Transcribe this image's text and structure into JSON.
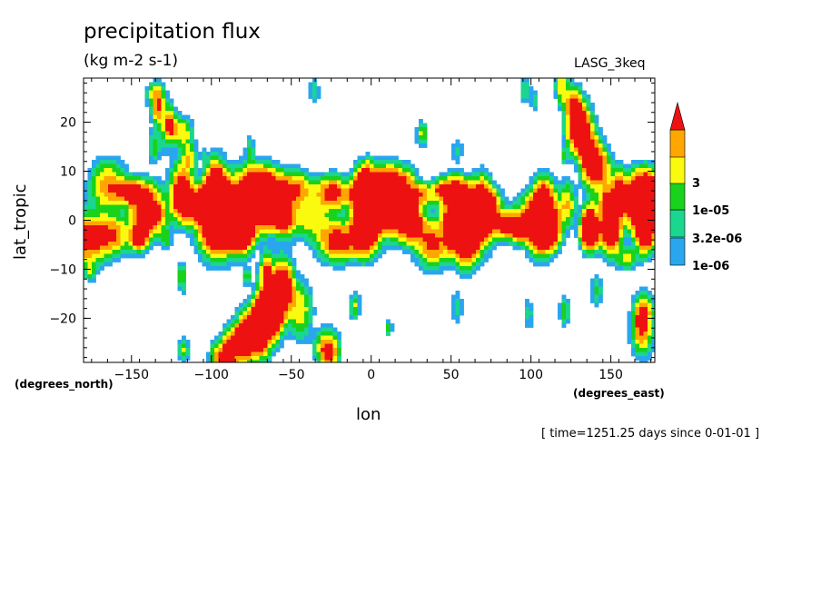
{
  "title": "precipitation flux",
  "units": "(kg m-2 s-1)",
  "dataset": "LASG_3keq",
  "footer": "[ time=1251.25 days since 0-01-01 ]",
  "chart_data": {
    "type": "heatmap",
    "title": "precipitation flux",
    "subtitle": "(kg m-2 s-1)",
    "xlabel": "lon",
    "ylabel": "lat_tropic",
    "x_units": "(degrees_east)",
    "y_units": "(degrees_north)",
    "xlim": [
      -180,
      177.5
    ],
    "ylim": [
      -29,
      29
    ],
    "xticks": [
      -150,
      -100,
      -50,
      0,
      50,
      100,
      150
    ],
    "yticks": [
      -20,
      -10,
      0,
      10,
      20
    ],
    "colorbar": {
      "levels": [
        "1e-06",
        "3.2e-06",
        "1e-05",
        "3"
      ],
      "colors": [
        "#ffffff",
        "#2aa6ee",
        "#1bd68e",
        "#19d21b",
        "#fafa0f",
        "#ffa600",
        "#ee1111"
      ],
      "extend": "max"
    },
    "zones": [
      {
        "feature": "equatorial rain band",
        "lat_range": [
          -6,
          9
        ],
        "lon_range": [
          -180,
          177.5
        ],
        "peak_class": 6
      },
      {
        "feature": "north-west tilted band",
        "from": [
          -145,
          28
        ],
        "to": [
          -20,
          -29
        ]
      },
      {
        "feature": "north-east tilted band",
        "from": [
          120,
          28
        ],
        "to": [
          175,
          -25
        ]
      },
      {
        "feature": "south-west tilted band",
        "from": [
          -95,
          -29
        ],
        "to": [
          -60,
          -18
        ]
      }
    ]
  }
}
